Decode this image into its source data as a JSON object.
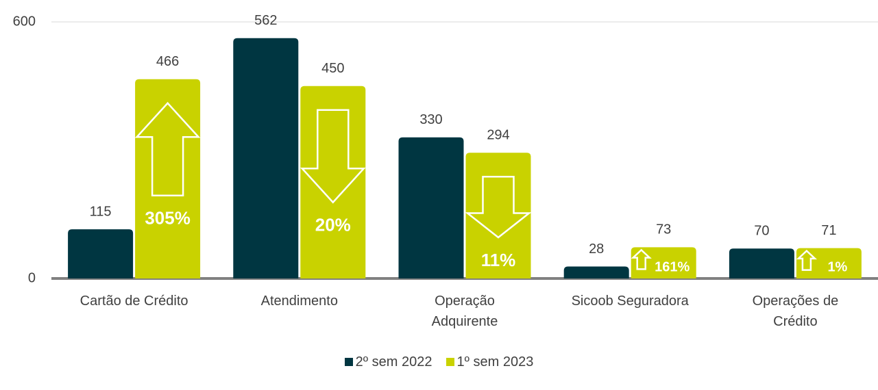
{
  "chart_data": {
    "type": "bar",
    "categories": [
      "Cartão de Crédito",
      "Atendimento",
      "Operação Adquirente",
      "Sicoob Seguradora",
      "Operações de Crédito"
    ],
    "series": [
      {
        "name": "2º sem 2022",
        "color": "#003641",
        "values": [
          115,
          562,
          330,
          28,
          70
        ]
      },
      {
        "name": "1º sem 2023",
        "color": "#c9d200",
        "values": [
          466,
          450,
          294,
          73,
          71
        ]
      }
    ],
    "change_labels": [
      "305%",
      "20%",
      "11%",
      "161%",
      "1%"
    ],
    "change_direction": [
      "up",
      "down",
      "down",
      "up",
      "up"
    ],
    "ylim": [
      0,
      600
    ],
    "yticks": [
      0,
      600
    ],
    "grid": true,
    "legend": "bottom"
  }
}
